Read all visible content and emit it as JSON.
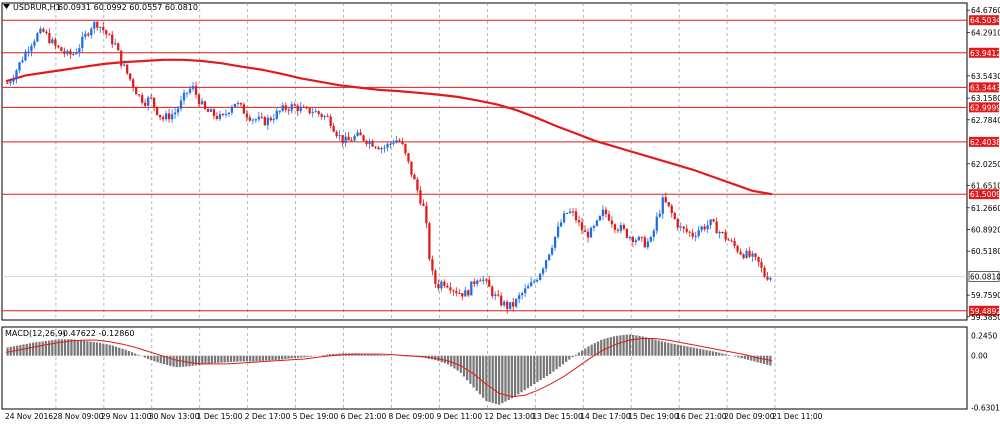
{
  "chart_header": {
    "symbol": "USDRUR,H1",
    "quote": "60.0931 60.0992 60.0557 60.0810"
  },
  "macd_header": {
    "label": "MACD(12,26,9)",
    "values": "-0.47622 -0.12860"
  },
  "colors": {
    "up": "#1e6fe6",
    "down": "#e11b1b",
    "ma": "#e11b1b",
    "level": "#e11b1b",
    "grid": "#9a9a9a",
    "histogram": "#777777",
    "signal": "#e11b1b"
  },
  "chart_data": [
    {
      "type": "candlestick",
      "title": "",
      "y_ticks": [
        "64.6760",
        "64.2910",
        "63.5430",
        "63.1580",
        "62.7840",
        "62.0250",
        "61.6510",
        "61.2660",
        "60.8920",
        "60.5180",
        "59.7590",
        "59.3850"
      ],
      "ylim": [
        59.33,
        64.8
      ],
      "x_ticks": [
        "24 Nov 2016",
        "28 Nov 09:00",
        "29 Nov 11:00",
        "30 Nov 13:00",
        "1 Dec 15:00",
        "2 Dec 17:00",
        "5 Dec 19:00",
        "6 Dec 21:00",
        "8 Dec 09:00",
        "9 Dec 11:00",
        "12 Dec 13:00",
        "13 Dec 15:00",
        "14 Dec 17:00",
        "15 Dec 19:00",
        "16 Dec 21:00",
        "20 Dec 09:00",
        "21 Dec 11:00"
      ],
      "levels": [
        "64.5034",
        "63.9412",
        "63.3443",
        "62.9999",
        "62.4038",
        "61.5009",
        "59.4892"
      ],
      "current_price": "60.0810",
      "price_path": [
        63.42,
        63.55,
        63.75,
        63.95,
        64.12,
        64.25,
        64.3,
        64.18,
        64.05,
        63.98,
        63.9,
        63.92,
        64.05,
        64.22,
        64.4,
        64.46,
        64.35,
        64.2,
        64.1,
        63.8,
        63.6,
        63.4,
        63.2,
        63.1,
        63.15,
        62.95,
        62.8,
        62.85,
        62.9,
        63.05,
        63.25,
        63.35,
        63.15,
        62.95,
        62.9,
        62.85,
        62.8,
        62.95,
        63.1,
        63.0,
        62.9,
        62.82,
        62.78,
        62.75,
        62.8,
        62.88,
        62.95,
        63.0,
        63.02,
        62.98,
        62.92,
        62.95,
        62.9,
        62.85,
        62.8,
        62.6,
        62.45,
        62.4,
        62.48,
        62.5,
        62.45,
        62.4,
        62.35,
        62.3,
        62.35,
        62.45,
        62.4,
        62.1,
        61.8,
        61.5,
        61.2,
        60.2,
        59.9,
        60.0,
        59.95,
        59.85,
        59.8,
        59.78,
        59.95,
        60.1,
        60.0,
        59.85,
        59.7,
        59.62,
        59.55,
        59.6,
        59.75,
        59.85,
        59.95,
        60.1,
        60.3,
        60.55,
        60.8,
        61.05,
        61.2,
        61.15,
        60.95,
        60.8,
        60.85,
        61.0,
        61.2,
        61.1,
        60.95,
        60.9,
        60.8,
        60.75,
        60.7,
        60.65,
        60.7,
        61.1,
        61.4,
        61.25,
        61.05,
        60.9,
        60.85,
        60.8,
        60.9,
        60.95,
        61.0,
        60.9,
        60.8,
        60.7,
        60.6,
        60.5,
        60.45,
        60.4,
        60.3,
        60.1,
        60.08
      ],
      "ma_path": [
        63.45,
        63.55,
        63.6,
        63.65,
        63.7,
        63.75,
        63.78,
        63.8,
        63.82,
        63.82,
        63.8,
        63.76,
        63.7,
        63.65,
        63.58,
        63.5,
        63.44,
        63.38,
        63.34,
        63.3,
        63.28,
        63.25,
        63.22,
        63.18,
        63.12,
        63.05,
        62.95,
        62.82,
        62.68,
        62.55,
        62.42,
        62.32,
        62.22,
        62.12,
        62.02,
        61.92,
        61.8,
        61.68,
        61.56,
        61.5
      ],
      "macd_ylim": [
        -0.65,
        0.35
      ],
      "macd_ticks": [
        "0.2450",
        "0.00",
        "-0.6301"
      ],
      "macd_hist": [
        0.1,
        0.13,
        0.16,
        0.18,
        0.2,
        0.2,
        0.18,
        0.16,
        0.13,
        0.08,
        0.02,
        -0.05,
        -0.1,
        -0.14,
        -0.13,
        -0.11,
        -0.09,
        -0.08,
        -0.07,
        -0.07,
        -0.06,
        -0.05,
        -0.03,
        -0.02,
        0.0,
        0.02,
        0.03,
        0.03,
        0.02,
        0.01,
        0.0,
        -0.01,
        -0.02,
        -0.05,
        -0.1,
        -0.2,
        -0.38,
        -0.55,
        -0.6,
        -0.52,
        -0.42,
        -0.32,
        -0.22,
        -0.1,
        0.02,
        0.12,
        0.2,
        0.24,
        0.26,
        0.24,
        0.2,
        0.16,
        0.13,
        0.1,
        0.07,
        0.04,
        0.0,
        -0.04,
        -0.08,
        -0.12
      ],
      "macd_signal": [
        0.04,
        0.07,
        0.1,
        0.13,
        0.16,
        0.18,
        0.19,
        0.19,
        0.17,
        0.14,
        0.1,
        0.05,
        0.0,
        -0.05,
        -0.08,
        -0.1,
        -0.1,
        -0.1,
        -0.09,
        -0.08,
        -0.07,
        -0.06,
        -0.05,
        -0.04,
        -0.02,
        0.0,
        0.01,
        0.02,
        0.02,
        0.02,
        0.01,
        0.0,
        -0.01,
        -0.03,
        -0.06,
        -0.12,
        -0.22,
        -0.35,
        -0.46,
        -0.5,
        -0.48,
        -0.42,
        -0.34,
        -0.25,
        -0.14,
        -0.03,
        0.07,
        0.14,
        0.19,
        0.21,
        0.21,
        0.19,
        0.16,
        0.13,
        0.1,
        0.07,
        0.04,
        0.01,
        -0.03,
        -0.06
      ]
    }
  ]
}
